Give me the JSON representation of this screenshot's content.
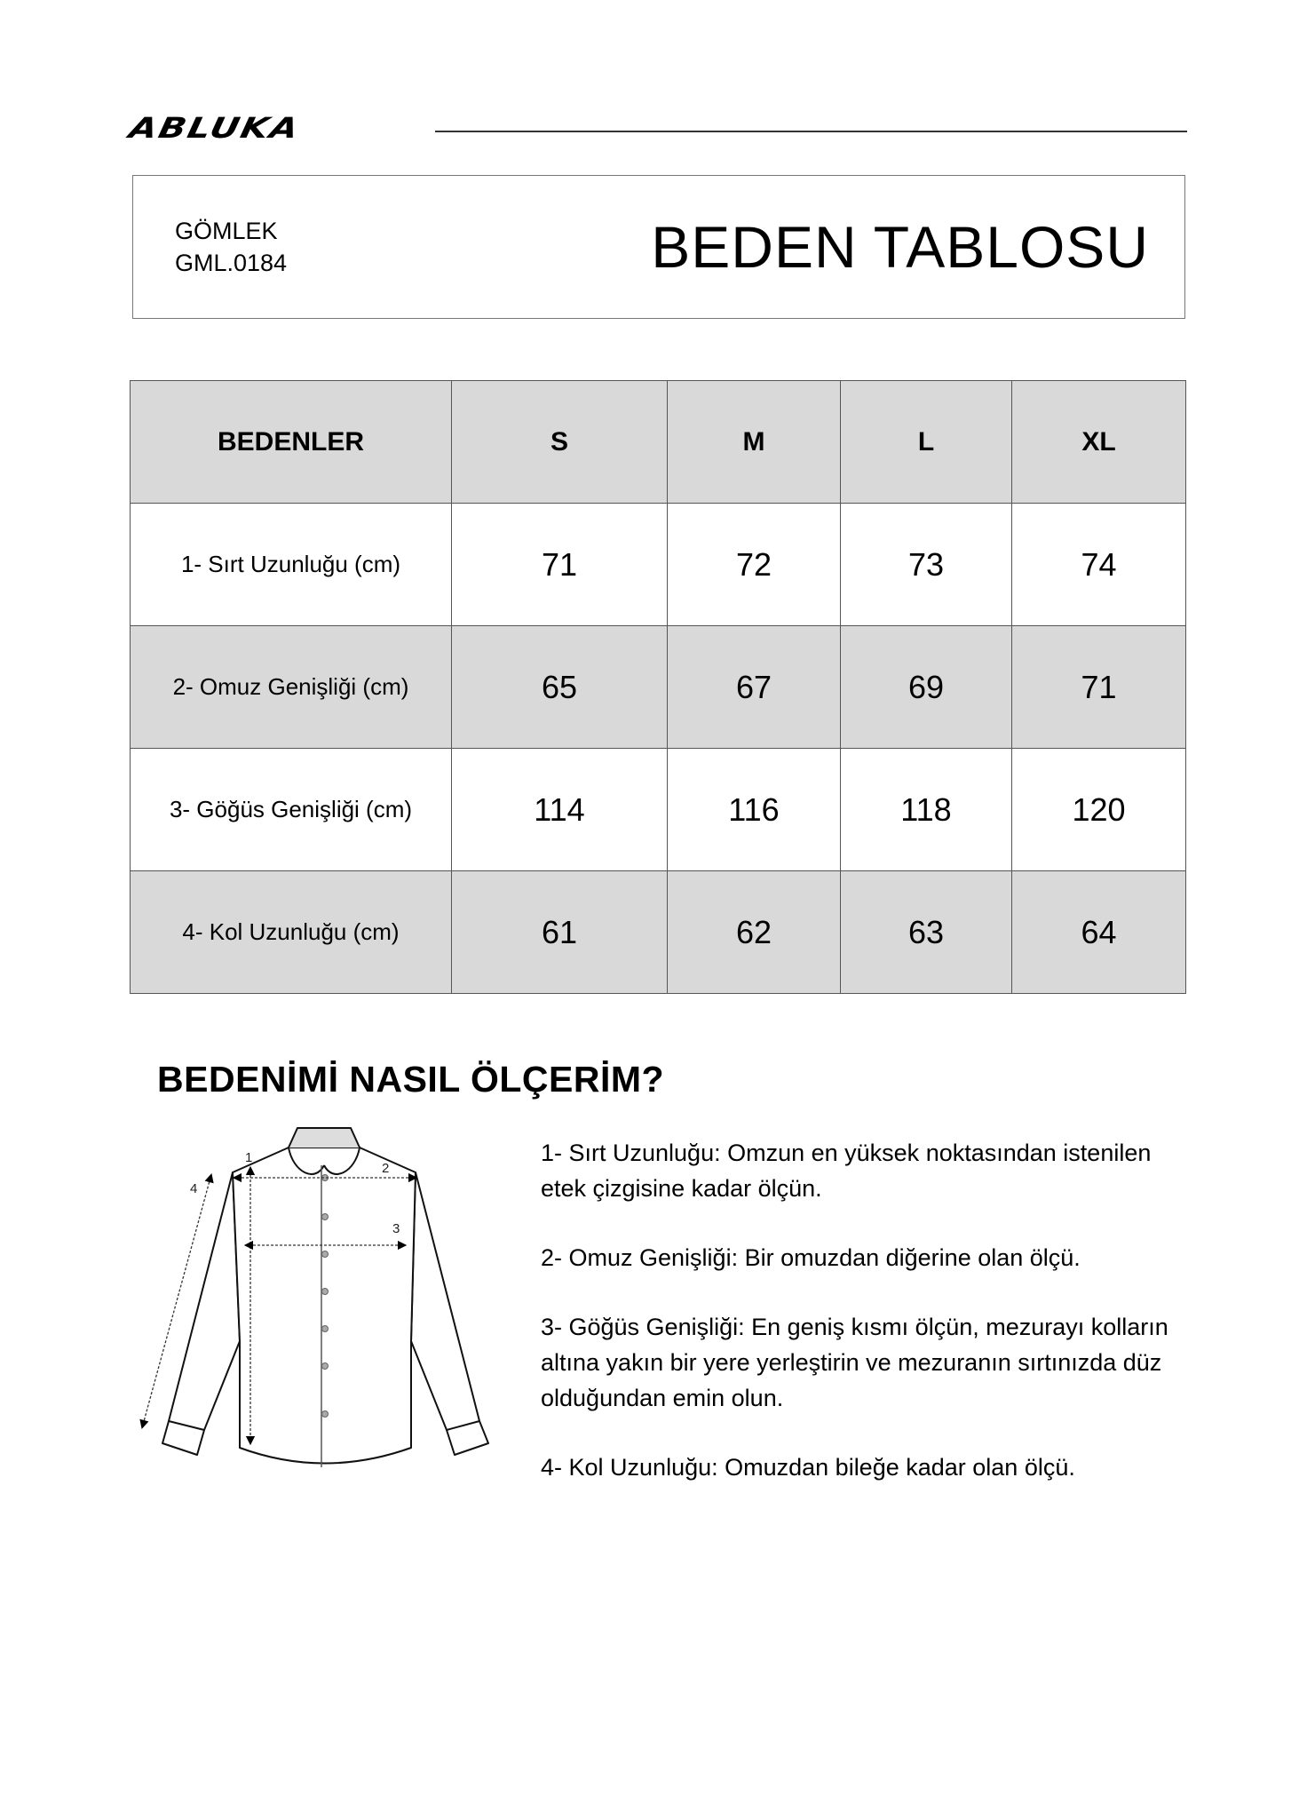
{
  "brand": {
    "logo": "ABLUKA"
  },
  "header": {
    "product_type": "GÖMLEK",
    "product_code": "GML.0184",
    "title": "BEDEN TABLOSU"
  },
  "table": {
    "columns": [
      "BEDENLER",
      "S",
      "M",
      "L",
      "XL"
    ],
    "rows": [
      {
        "label": "1- Sırt Uzunluğu (cm)",
        "values": [
          "71",
          "72",
          "73",
          "74"
        ]
      },
      {
        "label": "2- Omuz Genişliği (cm)",
        "values": [
          "65",
          "67",
          "69",
          "71"
        ]
      },
      {
        "label": "3- Göğüs Genişliği (cm)",
        "values": [
          "114",
          "116",
          "118",
          "120"
        ]
      },
      {
        "label": "4- Kol Uzunluğu (cm)",
        "values": [
          "61",
          "62",
          "63",
          "64"
        ]
      }
    ]
  },
  "guide": {
    "heading": "BEDENİMİ NASIL ÖLÇERİM?",
    "diagram_labels": [
      "1",
      "2",
      "3",
      "4"
    ],
    "items": [
      "1- Sırt Uzunluğu: Omzun en yüksek noktasından istenilen etek çizgisine kadar ölçün.",
      "2- Omuz Genişliği: Bir omuzdan diğerine olan ölçü.",
      "3- Göğüs Genişliği: En geniş kısmı ölçün, mezurayı kolların altına yakın bir yere yerleştirin ve mezuranın sırtınızda düz olduğundan emin olun.",
      "4- Kol Uzunluğu: Omuzdan bileğe kadar olan ölçü."
    ]
  },
  "colors": {
    "row_alt": "#d9d9d9",
    "border": "#555555"
  }
}
